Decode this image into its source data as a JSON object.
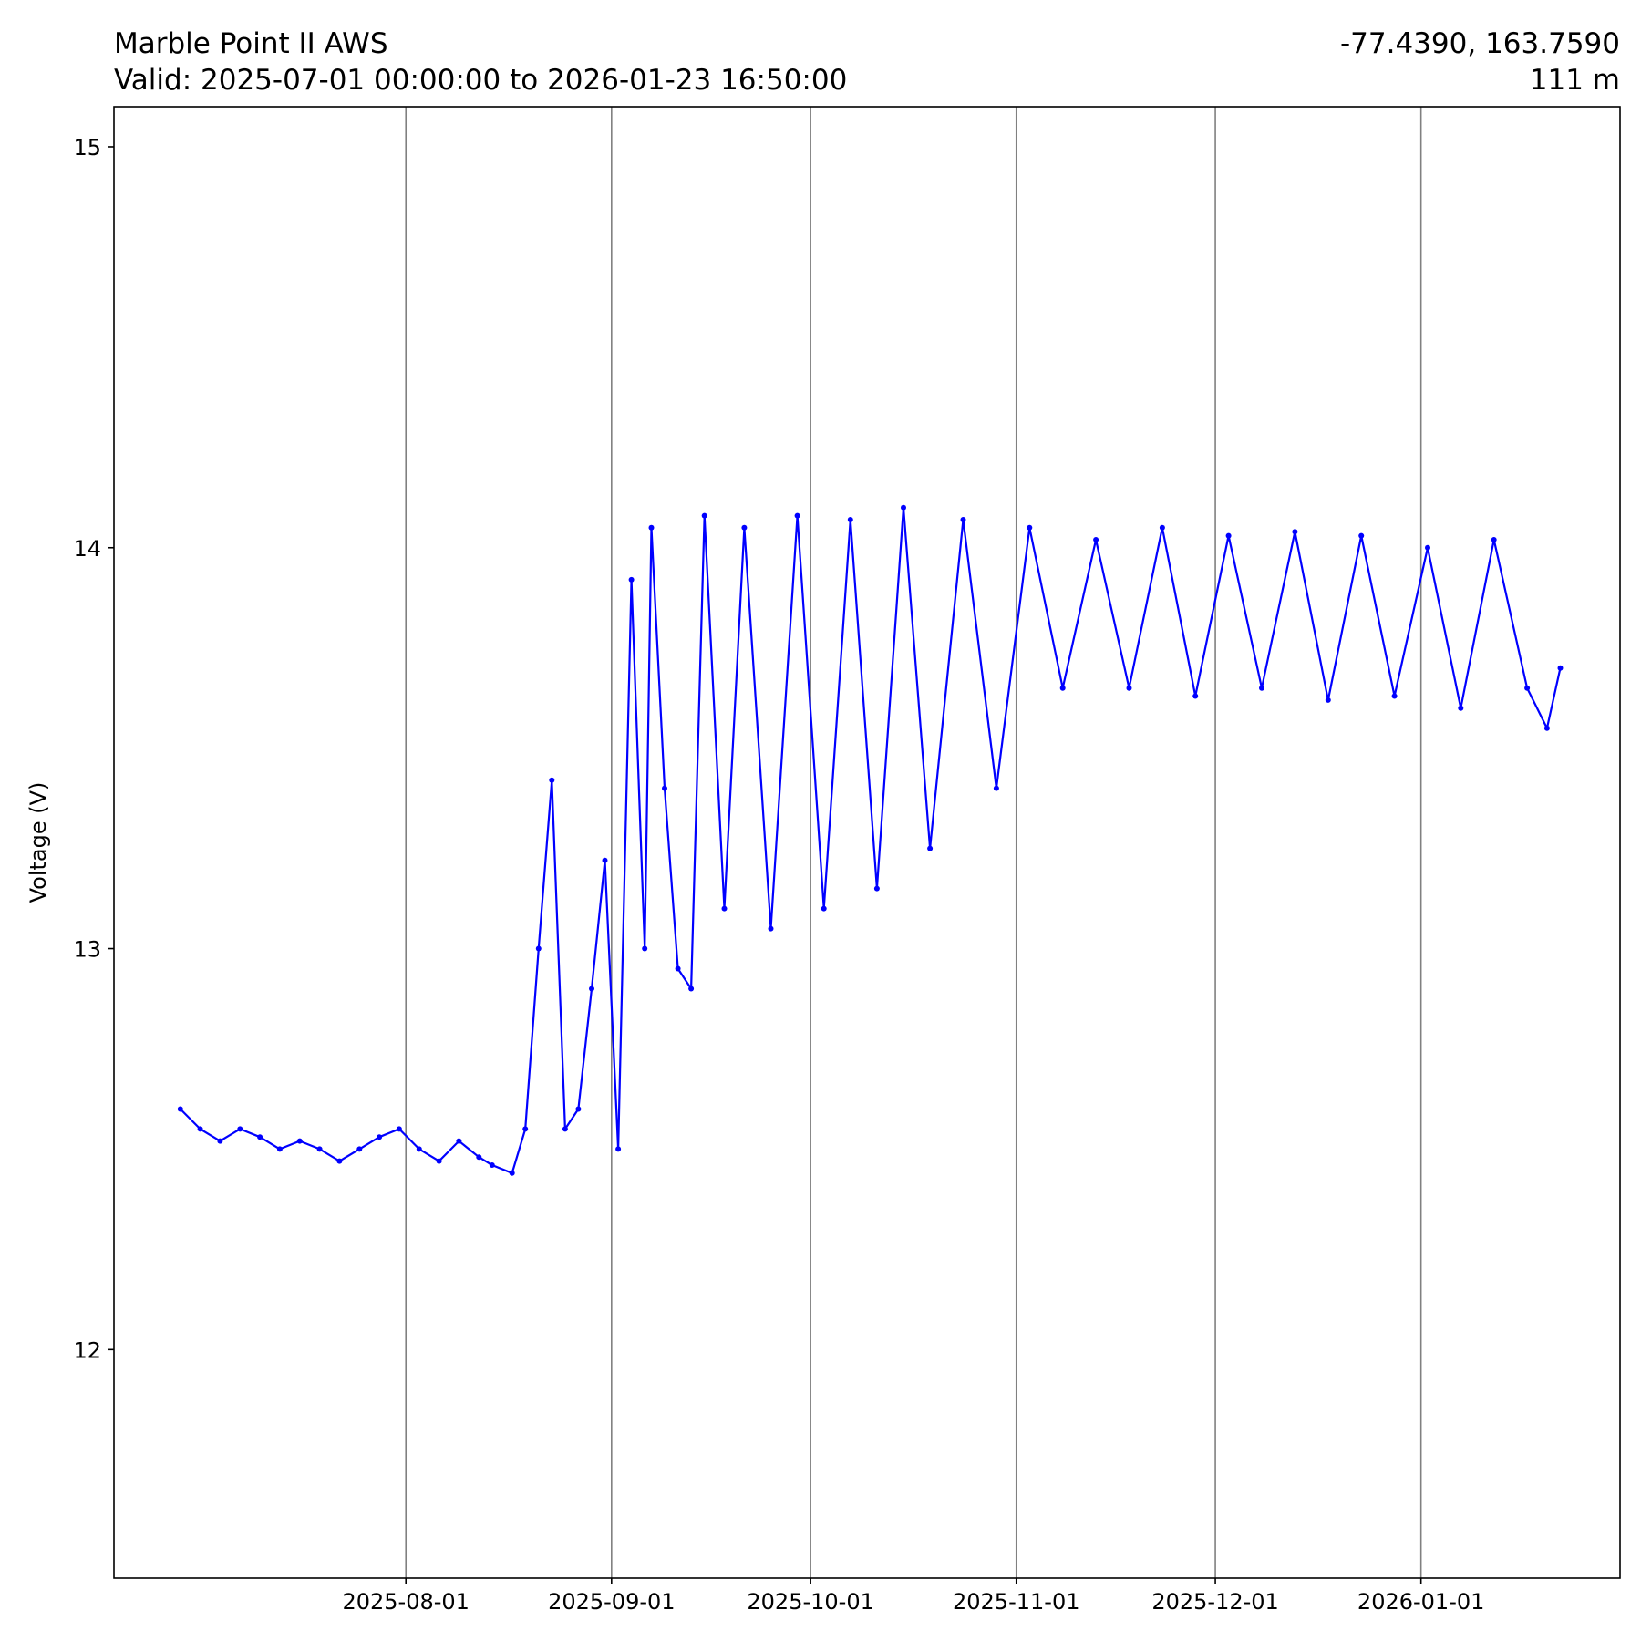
{
  "chart_data": {
    "type": "line",
    "title": "Marble Point II AWS",
    "subtitle": "Valid: 2025-07-01 00:00:00 to 2026-01-23 16:50:00",
    "location": "-77.4390, 163.7590",
    "elevation": "111 m",
    "xlabel": "",
    "ylabel": "Voltage (V)",
    "xlim": [
      "2025-06-18",
      "2026-01-31"
    ],
    "ylim": [
      11.43,
      15.1
    ],
    "x_ticks": [
      "2025-08-01",
      "2025-09-01",
      "2025-10-01",
      "2025-11-01",
      "2025-12-01",
      "2026-01-01"
    ],
    "y_ticks": [
      12,
      13,
      14,
      15
    ],
    "grid": "x-major",
    "series": [
      {
        "color": "#0000ff",
        "marker": "circle",
        "x": [
          "2025-06-28",
          "2025-07-01",
          "2025-07-04",
          "2025-07-07",
          "2025-07-10",
          "2025-07-13",
          "2025-07-16",
          "2025-07-19",
          "2025-07-22",
          "2025-07-25",
          "2025-07-28",
          "2025-07-31",
          "2025-08-03",
          "2025-08-06",
          "2025-08-09",
          "2025-08-12",
          "2025-08-14",
          "2025-08-17",
          "2025-08-19",
          "2025-08-21",
          "2025-08-23",
          "2025-08-25",
          "2025-08-27",
          "2025-08-29",
          "2025-08-31",
          "2025-09-02",
          "2025-09-04",
          "2025-09-06",
          "2025-09-07",
          "2025-09-09",
          "2025-09-11",
          "2025-09-13",
          "2025-09-15",
          "2025-09-18",
          "2025-09-21",
          "2025-09-25",
          "2025-09-29",
          "2025-10-03",
          "2025-10-07",
          "2025-10-11",
          "2025-10-15",
          "2025-10-19",
          "2025-10-24",
          "2025-10-29",
          "2025-11-03",
          "2025-11-08",
          "2025-11-13",
          "2025-11-18",
          "2025-11-23",
          "2025-11-28",
          "2025-12-03",
          "2025-12-08",
          "2025-12-13",
          "2025-12-18",
          "2025-12-23",
          "2025-12-28",
          "2026-01-02",
          "2026-01-07",
          "2026-01-12",
          "2026-01-17",
          "2026-01-20",
          "2026-01-22"
        ],
        "values": [
          12.6,
          12.55,
          12.52,
          12.55,
          12.53,
          12.5,
          12.52,
          12.5,
          12.47,
          12.5,
          12.53,
          12.55,
          12.5,
          12.47,
          12.52,
          12.48,
          12.46,
          12.44,
          12.55,
          13.0,
          13.42,
          12.55,
          12.6,
          12.9,
          13.22,
          12.5,
          13.92,
          13.0,
          14.05,
          13.4,
          12.95,
          12.9,
          14.08,
          13.1,
          14.05,
          13.05,
          14.08,
          13.1,
          14.07,
          13.15,
          14.1,
          13.25,
          14.07,
          13.4,
          14.05,
          13.65,
          14.02,
          13.65,
          14.05,
          13.63,
          14.03,
          13.65,
          14.04,
          13.62,
          14.03,
          13.63,
          14.0,
          13.6,
          14.02,
          13.65,
          13.55,
          13.7
        ]
      }
    ]
  }
}
